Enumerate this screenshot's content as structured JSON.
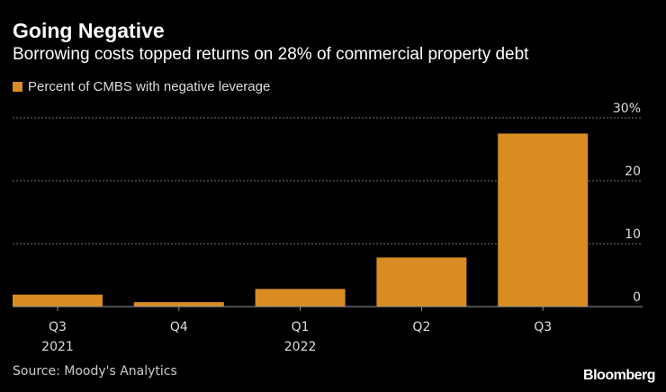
{
  "colors": {
    "bar": "#d98c22",
    "grid": "#777777",
    "axis": "#999999"
  },
  "brand": "Bloomberg",
  "source": "Source: Moody's Analytics",
  "chart_data": {
    "type": "bar",
    "title": "Going Negative",
    "subtitle": "Borrowing costs topped returns on 28% of commercial property debt",
    "series": [
      {
        "name": "Percent of CMBS with negative leverage",
        "values": [
          1.9,
          0.7,
          2.8,
          7.8,
          27.5
        ]
      }
    ],
    "categories": [
      "Q3",
      "Q4",
      "Q1",
      "Q2",
      "Q3"
    ],
    "category_years": [
      "2021",
      "",
      "2022",
      "",
      ""
    ],
    "ylim": [
      0,
      30
    ],
    "yticks": [
      {
        "value": 0,
        "label": "0"
      },
      {
        "value": 10,
        "label": "10"
      },
      {
        "value": 20,
        "label": "20"
      },
      {
        "value": 30,
        "label": "30%"
      }
    ],
    "xlabel": "",
    "ylabel": "",
    "grid": true,
    "legend_position": "top-left"
  }
}
